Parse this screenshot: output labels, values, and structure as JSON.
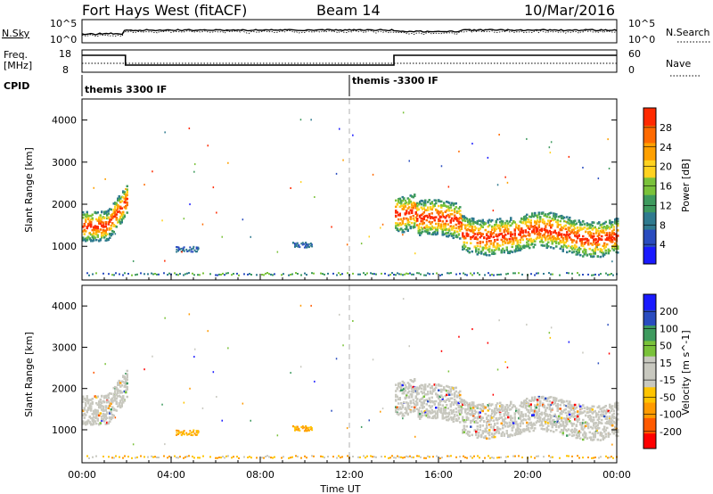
{
  "header": {
    "radar": "Fort Hays West (fitACF)",
    "beam": "Beam 14",
    "date": "10/Mar/2016"
  },
  "top_panels": {
    "nsky_label": "N.Sky",
    "nsearch_label": "N.Search",
    "nsky_ticks": [
      "10^5",
      "10^0"
    ],
    "nsearch_ticks": [
      "10^5",
      "10^0"
    ],
    "freq_label_1": "Freq.",
    "freq_label_2": "[MHz]",
    "freq_ticks": [
      "18",
      "8"
    ],
    "nave_label": "Nave",
    "nave_ticks": [
      "60",
      "0"
    ],
    "cpid_label": "CPID",
    "cpid_segments": [
      "themis 3300 IF",
      "themis -3300 IF"
    ],
    "cpid_switch_hour": 12
  },
  "colors": {
    "power_scale": [
      "#1a1aff",
      "#2a4cbf",
      "#2f7a8f",
      "#3e9a5e",
      "#7ac23a",
      "#ffd21f",
      "#ffa000",
      "#ff6a00",
      "#ff2a00"
    ],
    "velocity_scale": [
      "#ff0000",
      "#ff5a00",
      "#ff9a00",
      "#ffc400",
      "#c8c8bf",
      "#c8c8bf",
      "#7ac23a",
      "#3e9a5e",
      "#2a4cbf",
      "#1a1aff"
    ]
  },
  "chart_data": [
    {
      "type": "heatmap",
      "panel": "power",
      "ylabel": "Slant Range [km]",
      "ylim": [
        200,
        4500
      ],
      "y_ticks": [
        1000,
        2000,
        3000,
        4000
      ],
      "x_range_hours": [
        0,
        24
      ],
      "colorbar": {
        "label": "Power [dB]",
        "ticks": [
          "4",
          "8",
          "12",
          "16",
          "20",
          "24",
          "28"
        ],
        "range": [
          0,
          30
        ]
      },
      "features": [
        {
          "start_hour": 0.0,
          "end_hour": 1.1,
          "range_km": 1500
        },
        {
          "start_hour": 1.1,
          "end_hour": 2.0,
          "range_km": 1800
        },
        {
          "start_hour": 14.0,
          "end_hour": 15.0,
          "range_km": 1800
        },
        {
          "start_hour": 15.0,
          "end_hour": 17.0,
          "range_km": 1600
        },
        {
          "start_hour": 17.0,
          "end_hour": 19.0,
          "range_km": 1350
        },
        {
          "start_hour": 19.0,
          "end_hour": 24.0,
          "range_km": 1300
        }
      ]
    },
    {
      "type": "heatmap",
      "panel": "velocity",
      "ylabel": "Slant Range [km]",
      "ylim": [
        200,
        4500
      ],
      "y_ticks": [
        1000,
        2000,
        3000,
        4000
      ],
      "x_range_hours": [
        0,
        24
      ],
      "xlabel": "Time UT",
      "x_ticks": [
        "00:00",
        "04:00",
        "08:00",
        "12:00",
        "16:00",
        "20:00",
        "00:00"
      ],
      "colorbar": {
        "label": "Velocity [m s^-1]",
        "ticks": [
          "-200",
          "-100",
          "-50",
          "-15",
          "15",
          "50",
          "100",
          "200"
        ],
        "range": [
          -250,
          250
        ]
      }
    }
  ]
}
